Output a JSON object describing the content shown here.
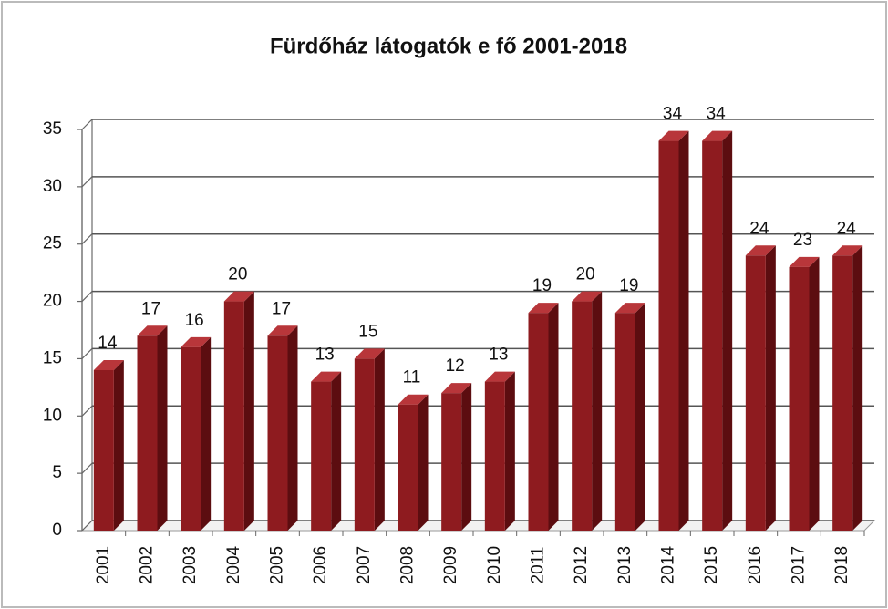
{
  "chart_data": {
    "type": "bar",
    "title": "Fürdőház látogatók e fő 2001-2018",
    "categories": [
      "2001",
      "2002",
      "2003",
      "2004",
      "2005",
      "2006",
      "2007",
      "2008",
      "2009",
      "2010",
      "2011",
      "2012",
      "2013",
      "2014",
      "2015",
      "2016",
      "2017",
      "2018"
    ],
    "values": [
      14,
      17,
      16,
      20,
      17,
      13,
      15,
      11,
      12,
      13,
      19,
      20,
      19,
      34,
      34,
      24,
      23,
      24
    ],
    "color": "#8e1b1f",
    "ylim": [
      0,
      35
    ],
    "yticks": [
      0,
      5,
      10,
      15,
      20,
      25,
      30,
      35
    ],
    "grid": true,
    "data_labels": true
  }
}
